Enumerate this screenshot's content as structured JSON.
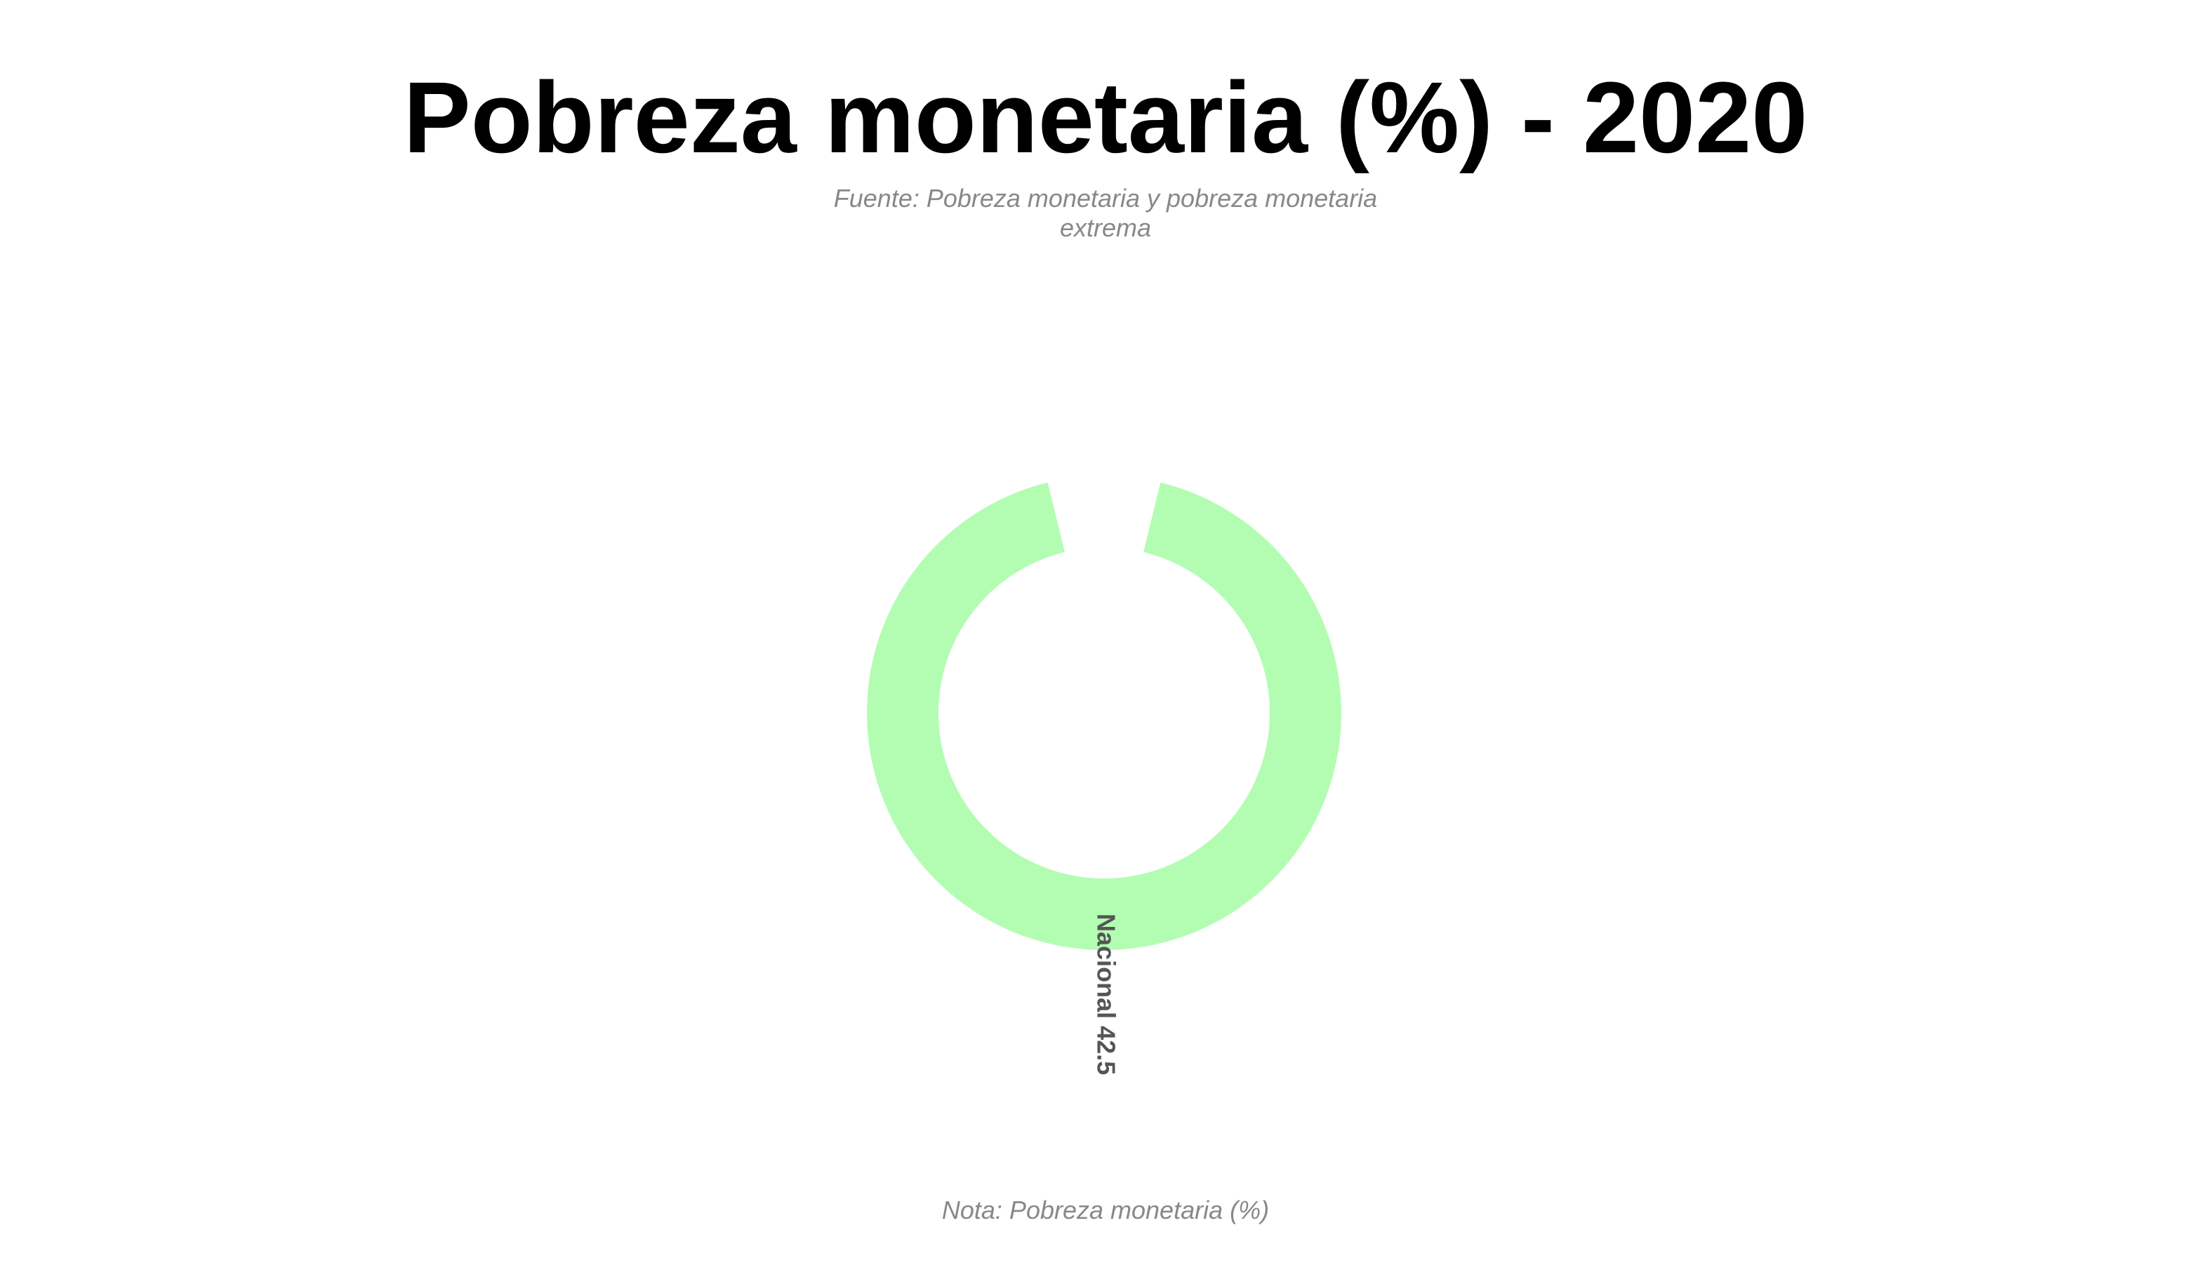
{
  "title": "Pobreza monetaria (%) - 2020",
  "subtitle": "Fuente: Pobreza monetaria y pobreza monetaria extrema",
  "note": "Nota: Pobreza monetaria (%)",
  "chart_data": {
    "type": "pie",
    "style": "donut",
    "title": "Pobreza monetaria (%) - 2020",
    "subtitle": "Fuente: Pobreza monetaria y pobreza monetaria extrema",
    "categories": [
      "Nacional"
    ],
    "values": [
      42.5
    ],
    "labels": [
      "Nacional 42.5"
    ],
    "colors": [
      "#b3fdb3"
    ],
    "label_color": "#555555",
    "legend": "none"
  }
}
